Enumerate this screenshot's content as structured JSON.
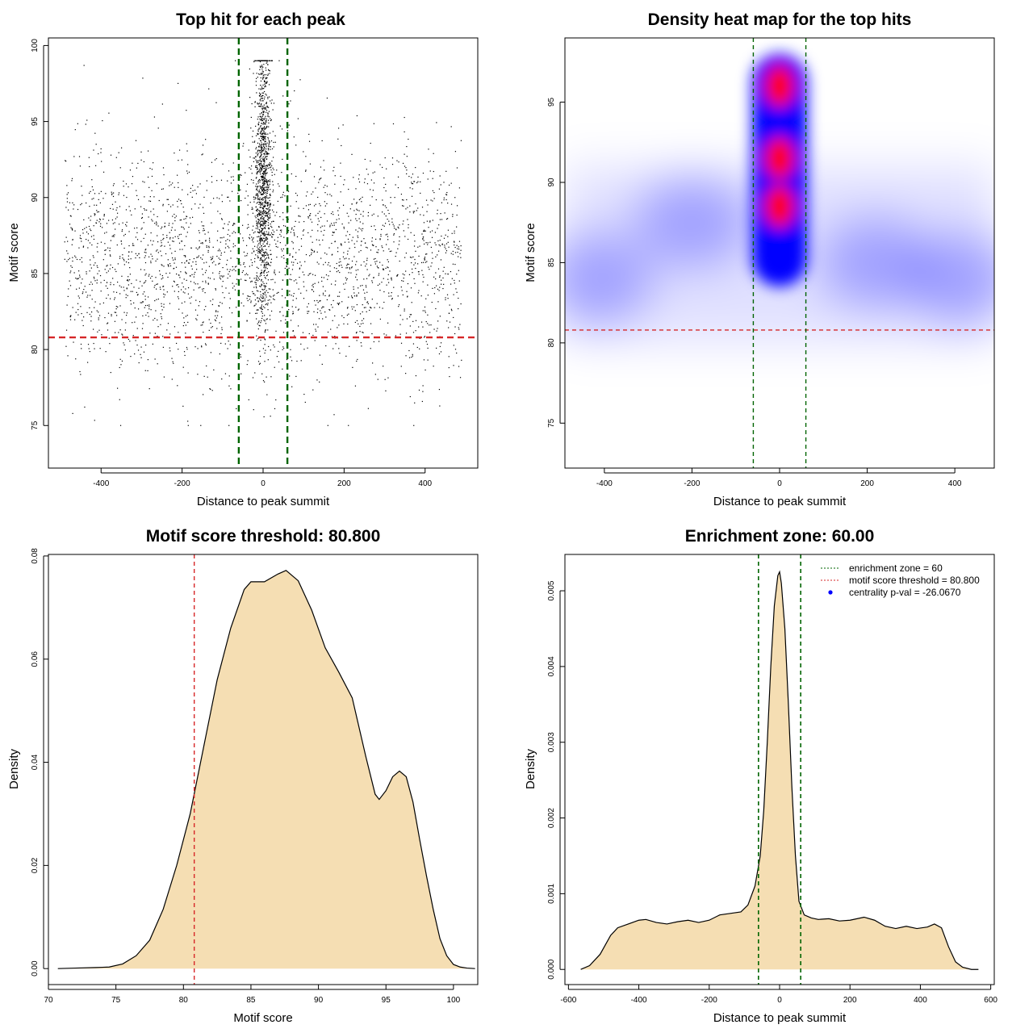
{
  "colors": {
    "threshold_line": "#d62728",
    "zone_line": "#006400",
    "density_fill": "#f5deb3",
    "density_stroke": "#000000",
    "heat_low": "#ffffff",
    "heat_mid": "#0000ff",
    "heat_high": "#ff0000",
    "legend_point": "#0000ff",
    "points": "#000000"
  },
  "chart_data": [
    {
      "type": "scatter",
      "title": "Top hit for each peak",
      "xlabel": "Distance to peak summit",
      "ylabel": "Motif score",
      "xlim": [
        -530,
        530
      ],
      "ylim": [
        72.2,
        100.5
      ],
      "xticks": [
        -400,
        -200,
        0,
        200,
        400
      ],
      "xtick_labels": [
        "-400",
        "-200",
        "0",
        "200",
        "400"
      ],
      "yticks": [
        75,
        80,
        85,
        90,
        95,
        100
      ],
      "ytick_labels": [
        "75",
        "80",
        "85",
        "90",
        "95",
        "100"
      ],
      "grid": false,
      "point_distribution": {
        "n_background": 2600,
        "n_central": 1200,
        "background_x_range": [
          -490,
          490
        ],
        "background_score_mean": 86,
        "background_score_sd": 3.7,
        "central_x_sd": 11,
        "central_score_mean": 91,
        "central_score_sd": 4.5,
        "score_range": [
          75,
          99
        ]
      },
      "hlines": [
        {
          "y": 80.8,
          "style": "dashed",
          "color": "red"
        }
      ],
      "vlines": [
        {
          "x": -60,
          "style": "dashed",
          "color": "green"
        },
        {
          "x": 60,
          "style": "dashed",
          "color": "green"
        }
      ]
    },
    {
      "type": "heatmap",
      "title": "Density heat map for the top hits",
      "xlabel": "Distance to peak summit",
      "ylabel": "Motif score",
      "xlim": [
        -490,
        490
      ],
      "ylim": [
        72.2,
        99
      ],
      "xticks": [
        -400,
        -200,
        0,
        200,
        400
      ],
      "xtick_labels": [
        "-400",
        "-200",
        "0",
        "200",
        "400"
      ],
      "yticks": [
        75,
        80,
        85,
        90,
        95
      ],
      "ytick_labels": [
        "75",
        "80",
        "85",
        "90",
        "95"
      ],
      "color_scale": [
        "white",
        "blue",
        "red"
      ],
      "density_hotspots": [
        {
          "x": 0,
          "y": 96,
          "intensity": "high"
        },
        {
          "x": 0,
          "y": 91.5,
          "intensity": "high"
        },
        {
          "x": 0,
          "y": 88.5,
          "intensity": "high"
        },
        {
          "x": -420,
          "y": 84,
          "intensity": "low"
        },
        {
          "x": -200,
          "y": 87.5,
          "intensity": "low"
        },
        {
          "x": 220,
          "y": 85,
          "intensity": "low"
        },
        {
          "x": 420,
          "y": 84,
          "intensity": "low"
        }
      ],
      "hlines": [
        {
          "y": 80.8,
          "style": "dashed",
          "color": "red"
        }
      ],
      "vlines": [
        {
          "x": -60,
          "style": "dashed",
          "color": "green"
        },
        {
          "x": 60,
          "style": "dashed",
          "color": "green"
        }
      ]
    },
    {
      "type": "area",
      "title": "Motif score threshold: 80.800",
      "xlabel": "Motif score",
      "ylabel": "Density",
      "xlim": [
        70,
        101.8
      ],
      "ylim": [
        -0.0031,
        0.0803
      ],
      "xticks": [
        70,
        75,
        80,
        85,
        90,
        95,
        100
      ],
      "xtick_labels": [
        "70",
        "75",
        "80",
        "85",
        "90",
        "95",
        "100"
      ],
      "yticks": [
        0,
        0.02,
        0.04,
        0.06,
        0.08
      ],
      "ytick_labels": [
        "0.00",
        "0.02",
        "0.04",
        "0.06",
        "0.08"
      ],
      "x": [
        70.7,
        72,
        73.5,
        74.5,
        75.5,
        76.5,
        77.5,
        78.5,
        79.5,
        80.5,
        81.5,
        82.5,
        83.5,
        84.5,
        85,
        86,
        87,
        87.6,
        88.5,
        89.5,
        90.5,
        91.5,
        92.5,
        93.5,
        94.2,
        94.5,
        95,
        95.5,
        96,
        96.5,
        97,
        97.5,
        98,
        98.5,
        99,
        99.5,
        100,
        100.5,
        101,
        101.6
      ],
      "values": [
        0.0,
        0.0001,
        0.0002,
        0.0003,
        0.0009,
        0.0025,
        0.0055,
        0.0115,
        0.02,
        0.03,
        0.043,
        0.056,
        0.066,
        0.0735,
        0.075,
        0.075,
        0.0765,
        0.0772,
        0.0752,
        0.0695,
        0.0622,
        0.0575,
        0.0525,
        0.0412,
        0.0338,
        0.0328,
        0.0345,
        0.0372,
        0.0383,
        0.0372,
        0.0323,
        0.025,
        0.018,
        0.0115,
        0.0058,
        0.0025,
        0.0008,
        0.0003,
        0.0001,
        0.0
      ],
      "vlines": [
        {
          "x": 80.8,
          "style": "dashed",
          "color": "red"
        }
      ]
    },
    {
      "type": "area",
      "title": "Enrichment zone: 60.00",
      "xlabel": "Distance to peak summit",
      "ylabel": "Density",
      "xlim": [
        -610,
        610
      ],
      "ylim": [
        -0.0002,
        0.00548
      ],
      "xticks": [
        -600,
        -400,
        -200,
        0,
        200,
        400,
        600
      ],
      "xtick_labels": [
        "-600",
        "-400",
        "-200",
        "0",
        "200",
        "400",
        "600"
      ],
      "yticks": [
        0,
        0.001,
        0.002,
        0.003,
        0.004,
        0.005
      ],
      "ytick_labels": [
        "0.000",
        "0.001",
        "0.002",
        "0.003",
        "0.004",
        "0.005"
      ],
      "x": [
        -565,
        -540,
        -510,
        -480,
        -460,
        -430,
        -400,
        -380,
        -350,
        -320,
        -290,
        -260,
        -230,
        -200,
        -170,
        -140,
        -110,
        -90,
        -70,
        -55,
        -45,
        -35,
        -25,
        -15,
        -5,
        0,
        5,
        15,
        25,
        35,
        45,
        55,
        70,
        90,
        110,
        140,
        170,
        200,
        240,
        270,
        300,
        330,
        360,
        390,
        420,
        440,
        460,
        480,
        500,
        520,
        545,
        565
      ],
      "values": [
        0.0,
        5e-05,
        0.0002,
        0.00045,
        0.00055,
        0.0006,
        0.00065,
        0.00066,
        0.00062,
        0.0006,
        0.00063,
        0.00065,
        0.00062,
        0.00065,
        0.00072,
        0.00074,
        0.00076,
        0.00085,
        0.0011,
        0.0015,
        0.0021,
        0.003,
        0.004,
        0.0048,
        0.0052,
        0.00525,
        0.0051,
        0.0045,
        0.0035,
        0.0024,
        0.0015,
        0.0009,
        0.00072,
        0.00068,
        0.00066,
        0.00067,
        0.00064,
        0.00065,
        0.00069,
        0.00065,
        0.00057,
        0.00054,
        0.00057,
        0.00054,
        0.00056,
        0.0006,
        0.00055,
        0.0003,
        0.0001,
        3e-05,
        0.0,
        0.0
      ],
      "vlines": [
        {
          "x": -60,
          "style": "dashed",
          "color": "green"
        },
        {
          "x": 60,
          "style": "dashed",
          "color": "green"
        }
      ],
      "legend": {
        "position": "top-right",
        "entries": [
          "enrichment zone = 60",
          "motif score threshold = 80.800",
          "centrality p-val = -26.0670"
        ]
      }
    }
  ]
}
